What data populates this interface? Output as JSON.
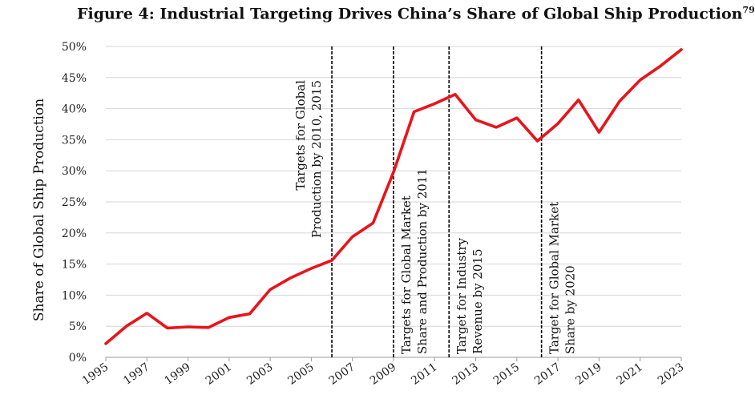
{
  "title": {
    "text": "Figure 4:  Industrial Targeting Drives China’s Share of Global Ship Production",
    "footnote": "79"
  },
  "chart_data": {
    "type": "line",
    "title": "Figure 4:  Industrial Targeting Drives China’s Share of Global Ship Production",
    "xlabel": "",
    "ylabel": "Share of Global Ship Production",
    "x": [
      1995,
      1996,
      1997,
      1998,
      1999,
      2000,
      2001,
      2002,
      2003,
      2004,
      2005,
      2006,
      2007,
      2008,
      2009,
      2010,
      2011,
      2012,
      2013,
      2014,
      2015,
      2016,
      2017,
      2018,
      2019,
      2020,
      2021,
      2022,
      2023
    ],
    "series": [
      {
        "name": "China share of global ship production",
        "color": "#e8141b",
        "values": [
          2.2,
          5.0,
          7.1,
          4.7,
          4.9,
          4.8,
          6.4,
          7.0,
          10.9,
          12.8,
          14.3,
          15.6,
          19.4,
          21.6,
          29.8,
          39.5,
          40.8,
          42.3,
          38.2,
          37.0,
          38.5,
          34.8,
          37.6,
          41.4,
          36.2,
          41.2,
          44.6,
          46.9,
          49.5
        ]
      }
    ],
    "xlim": [
      1995,
      2023
    ],
    "ylim": [
      0,
      50
    ],
    "yticks": [
      0,
      5,
      10,
      15,
      20,
      25,
      30,
      35,
      40,
      45,
      50
    ],
    "ytick_labels": [
      "0%",
      "5%",
      "10%",
      "15%",
      "20%",
      "25%",
      "30%",
      "35%",
      "40%",
      "45%",
      "50%"
    ],
    "xticks": [
      1995,
      1997,
      1999,
      2001,
      2003,
      2005,
      2007,
      2009,
      2011,
      2013,
      2015,
      2017,
      2019,
      2021,
      2023
    ],
    "xtick_labels": [
      "1995",
      "1997",
      "1999",
      "2001",
      "2003",
      "2005",
      "2007",
      "2009",
      "2011",
      "2013",
      "2015",
      "2017",
      "2019",
      "2021",
      "2023"
    ],
    "grid": true,
    "annotations": [
      {
        "x": 2006.0,
        "lines": [
          "Targets for Global",
          "Production by 2010, 2015"
        ],
        "anchor": "top"
      },
      {
        "x": 2009.0,
        "lines": [
          "Targets for Global Market",
          "Share and Production by 2011"
        ],
        "anchor": "bottom"
      },
      {
        "x": 2011.7,
        "lines": [
          "Target for Industry",
          "Revenue by 2015"
        ],
        "anchor": "bottom"
      },
      {
        "x": 2016.2,
        "lines": [
          "Target for Global Market",
          "Share by 2020"
        ],
        "anchor": "bottom"
      }
    ]
  }
}
